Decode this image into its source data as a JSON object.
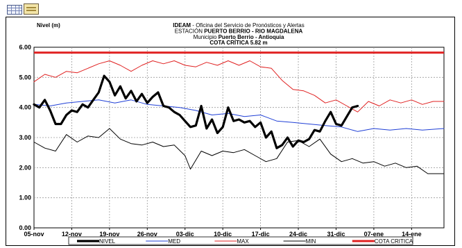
{
  "chart_data": {
    "type": "line",
    "ylabel": "Nivel (m)",
    "title_lines": [
      {
        "bold": "IDEAM",
        "normal": " - Oficina del Servicio de Pronósticos y Alertas"
      },
      {
        "normal": "ESTACIÓN ",
        "bold": "PUERTO BERRIO - RIO MAGDALENA"
      },
      {
        "normal": "Municipio ",
        "bold": "Puerto Berrio - Antioquia"
      }
    ],
    "critical_label": "COTA CRÍTICA 5.82 m",
    "ylim": [
      0,
      6
    ],
    "yticks": [
      "0.00",
      "1.00",
      "2.00",
      "3.00",
      "4.00",
      "5.00",
      "6.00"
    ],
    "xlim": [
      "2011-11-05",
      "2012-01-20"
    ],
    "xticks": [
      {
        "date": "2011-11-05",
        "label": "05-nov"
      },
      {
        "date": "2011-11-12",
        "label": "12-nov"
      },
      {
        "date": "2011-11-19",
        "label": "19-nov"
      },
      {
        "date": "2011-11-26",
        "label": "26-nov"
      },
      {
        "date": "2011-12-03",
        "label": "03-dic"
      },
      {
        "date": "2011-12-10",
        "label": "10-dic"
      },
      {
        "date": "2011-12-17",
        "label": "17-dic"
      },
      {
        "date": "2011-12-24",
        "label": "24-dic"
      },
      {
        "date": "2011-12-31",
        "label": "31-dic"
      },
      {
        "date": "2012-01-07",
        "label": "07-ene"
      },
      {
        "date": "2012-01-14",
        "label": "14-ene"
      }
    ],
    "grid": true,
    "legend_position": "bottom",
    "series": [
      {
        "name": "NIVEL",
        "color": "#000000",
        "style": "thick",
        "points": [
          [
            "2011-11-05",
            4.1
          ],
          [
            "2011-11-06",
            4.0
          ],
          [
            "2011-11-07",
            4.25
          ],
          [
            "2011-11-08",
            3.9
          ],
          [
            "2011-11-09",
            3.45
          ],
          [
            "2011-11-10",
            3.45
          ],
          [
            "2011-11-11",
            3.75
          ],
          [
            "2011-11-12",
            3.9
          ],
          [
            "2011-11-13",
            3.85
          ],
          [
            "2011-11-14",
            4.1
          ],
          [
            "2011-11-15",
            4.0
          ],
          [
            "2011-11-16",
            4.25
          ],
          [
            "2011-11-17",
            4.5
          ],
          [
            "2011-11-18",
            5.05
          ],
          [
            "2011-11-19",
            4.85
          ],
          [
            "2011-11-20",
            4.4
          ],
          [
            "2011-11-21",
            4.7
          ],
          [
            "2011-11-22",
            4.3
          ],
          [
            "2011-11-23",
            4.55
          ],
          [
            "2011-11-24",
            4.2
          ],
          [
            "2011-11-25",
            4.45
          ],
          [
            "2011-11-26",
            4.15
          ],
          [
            "2011-11-27",
            4.35
          ],
          [
            "2011-11-28",
            4.5
          ],
          [
            "2011-11-29",
            4.05
          ],
          [
            "2011-11-30",
            4.0
          ],
          [
            "2011-12-01",
            3.85
          ],
          [
            "2011-12-02",
            3.75
          ],
          [
            "2011-12-03",
            3.55
          ],
          [
            "2011-12-04",
            3.35
          ],
          [
            "2011-12-05",
            3.4
          ],
          [
            "2011-12-06",
            4.05
          ],
          [
            "2011-12-07",
            3.3
          ],
          [
            "2011-12-08",
            3.6
          ],
          [
            "2011-12-09",
            3.15
          ],
          [
            "2011-12-10",
            3.35
          ],
          [
            "2011-12-11",
            4.0
          ],
          [
            "2011-12-12",
            3.55
          ],
          [
            "2011-12-13",
            3.6
          ],
          [
            "2011-12-14",
            3.5
          ],
          [
            "2011-12-15",
            3.55
          ],
          [
            "2011-12-16",
            3.35
          ],
          [
            "2011-12-17",
            3.5
          ],
          [
            "2011-12-18",
            3.0
          ],
          [
            "2011-12-19",
            3.2
          ],
          [
            "2011-12-20",
            2.65
          ],
          [
            "2011-12-21",
            2.75
          ],
          [
            "2011-12-22",
            3.0
          ],
          [
            "2011-12-23",
            2.7
          ],
          [
            "2011-12-24",
            2.9
          ],
          [
            "2011-12-25",
            2.85
          ],
          [
            "2011-12-26",
            2.95
          ],
          [
            "2011-12-27",
            3.25
          ],
          [
            "2011-12-28",
            3.2
          ],
          [
            "2011-12-29",
            3.55
          ],
          [
            "2011-12-30",
            3.85
          ],
          [
            "2011-12-31",
            3.45
          ],
          [
            "2012-01-01",
            3.4
          ],
          [
            "2012-01-02",
            3.7
          ],
          [
            "2012-01-03",
            4.0
          ],
          [
            "2012-01-04",
            4.05
          ]
        ]
      },
      {
        "name": "MED",
        "color": "#1f3fd6",
        "style": "thin",
        "points": [
          [
            "2011-11-05",
            4.1
          ],
          [
            "2011-11-08",
            4.05
          ],
          [
            "2011-11-11",
            4.15
          ],
          [
            "2011-11-14",
            4.2
          ],
          [
            "2011-11-17",
            4.25
          ],
          [
            "2011-11-20",
            4.15
          ],
          [
            "2011-11-23",
            4.25
          ],
          [
            "2011-11-26",
            4.1
          ],
          [
            "2011-11-29",
            4.05
          ],
          [
            "2011-12-02",
            4.0
          ],
          [
            "2011-12-05",
            3.9
          ],
          [
            "2011-12-08",
            3.75
          ],
          [
            "2011-12-11",
            3.8
          ],
          [
            "2011-12-14",
            3.7
          ],
          [
            "2011-12-17",
            3.75
          ],
          [
            "2011-12-20",
            3.55
          ],
          [
            "2011-12-23",
            3.5
          ],
          [
            "2011-12-26",
            3.45
          ],
          [
            "2011-12-29",
            3.4
          ],
          [
            "2012-01-01",
            3.35
          ],
          [
            "2012-01-04",
            3.2
          ],
          [
            "2012-01-07",
            3.3
          ],
          [
            "2012-01-10",
            3.25
          ],
          [
            "2012-01-13",
            3.3
          ],
          [
            "2012-01-16",
            3.25
          ],
          [
            "2012-01-20",
            3.3
          ]
        ]
      },
      {
        "name": "MAX",
        "color": "#e02020",
        "style": "thin",
        "points": [
          [
            "2011-11-05",
            4.85
          ],
          [
            "2011-11-07",
            5.1
          ],
          [
            "2011-11-09",
            5.0
          ],
          [
            "2011-11-11",
            5.2
          ],
          [
            "2011-11-13",
            5.15
          ],
          [
            "2011-11-15",
            5.3
          ],
          [
            "2011-11-17",
            5.45
          ],
          [
            "2011-11-19",
            5.55
          ],
          [
            "2011-11-21",
            5.4
          ],
          [
            "2011-11-23",
            5.2
          ],
          [
            "2011-11-25",
            5.4
          ],
          [
            "2011-11-27",
            5.55
          ],
          [
            "2011-11-29",
            5.45
          ],
          [
            "2011-12-01",
            5.55
          ],
          [
            "2011-12-03",
            5.4
          ],
          [
            "2011-12-05",
            5.35
          ],
          [
            "2011-12-07",
            5.5
          ],
          [
            "2011-12-09",
            5.4
          ],
          [
            "2011-12-11",
            5.55
          ],
          [
            "2011-12-13",
            5.4
          ],
          [
            "2011-12-15",
            5.55
          ],
          [
            "2011-12-17",
            5.35
          ],
          [
            "2011-12-19",
            5.3
          ],
          [
            "2011-12-21",
            4.9
          ],
          [
            "2011-12-23",
            4.6
          ],
          [
            "2011-12-25",
            4.55
          ],
          [
            "2011-12-27",
            4.4
          ],
          [
            "2011-12-29",
            4.15
          ],
          [
            "2011-12-31",
            4.25
          ],
          [
            "2012-01-02",
            4.05
          ],
          [
            "2012-01-04",
            3.85
          ],
          [
            "2012-01-06",
            4.2
          ],
          [
            "2012-01-08",
            4.05
          ],
          [
            "2012-01-10",
            4.25
          ],
          [
            "2012-01-12",
            4.15
          ],
          [
            "2012-01-14",
            4.25
          ],
          [
            "2012-01-16",
            4.1
          ],
          [
            "2012-01-18",
            4.2
          ],
          [
            "2012-01-20",
            4.2
          ]
        ]
      },
      {
        "name": "MIN",
        "color": "#000000",
        "style": "thin",
        "points": [
          [
            "2011-11-05",
            2.85
          ],
          [
            "2011-11-07",
            2.65
          ],
          [
            "2011-11-09",
            2.55
          ],
          [
            "2011-11-11",
            3.1
          ],
          [
            "2011-11-13",
            2.85
          ],
          [
            "2011-11-15",
            3.05
          ],
          [
            "2011-11-17",
            3.0
          ],
          [
            "2011-11-19",
            3.3
          ],
          [
            "2011-11-21",
            2.95
          ],
          [
            "2011-11-23",
            2.8
          ],
          [
            "2011-11-25",
            2.75
          ],
          [
            "2011-11-27",
            2.85
          ],
          [
            "2011-11-29",
            2.7
          ],
          [
            "2011-12-01",
            2.75
          ],
          [
            "2011-12-03",
            2.4
          ],
          [
            "2011-12-04",
            1.95
          ],
          [
            "2011-12-06",
            2.55
          ],
          [
            "2011-12-08",
            2.4
          ],
          [
            "2011-12-10",
            2.55
          ],
          [
            "2011-12-12",
            2.5
          ],
          [
            "2011-12-14",
            2.6
          ],
          [
            "2011-12-16",
            2.4
          ],
          [
            "2011-12-18",
            2.2
          ],
          [
            "2011-12-20",
            2.3
          ],
          [
            "2011-12-22",
            2.85
          ],
          [
            "2011-12-24",
            2.9
          ],
          [
            "2011-12-26",
            2.7
          ],
          [
            "2011-12-28",
            2.95
          ],
          [
            "2011-12-30",
            2.45
          ],
          [
            "2012-01-01",
            2.2
          ],
          [
            "2012-01-03",
            2.3
          ],
          [
            "2012-01-05",
            2.15
          ],
          [
            "2012-01-07",
            2.2
          ],
          [
            "2012-01-09",
            2.05
          ],
          [
            "2012-01-11",
            2.15
          ],
          [
            "2012-01-13",
            2.0
          ],
          [
            "2012-01-15",
            2.05
          ],
          [
            "2012-01-17",
            1.8
          ],
          [
            "2012-01-20",
            1.8
          ]
        ]
      },
      {
        "name": "COTA CRITICA",
        "color": "#e02020",
        "style": "critical",
        "points": [
          [
            "2011-11-05",
            5.82
          ],
          [
            "2012-01-20",
            5.82
          ]
        ]
      }
    ]
  }
}
